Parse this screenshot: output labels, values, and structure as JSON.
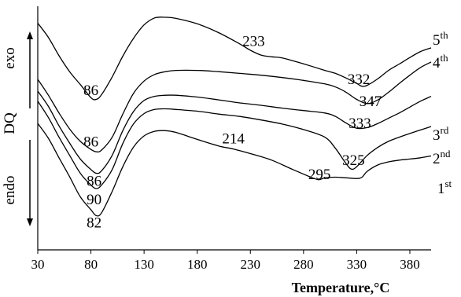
{
  "chart_data": {
    "type": "line",
    "title": "",
    "xlabel": "Temperature,°C",
    "ylabel": "DQ",
    "ylabel_top": "exo",
    "ylabel_bottom": "endo",
    "xlim": [
      30,
      400
    ],
    "ylim": [
      0,
      1
    ],
    "x_ticks": [
      30,
      80,
      130,
      180,
      230,
      280,
      330,
      380
    ],
    "grid": false,
    "series": [
      {
        "name": "5th",
        "label_base": "5",
        "label_sup": "th",
        "x": [
          30,
          40,
          50,
          60,
          70,
          80,
          85,
          90,
          100,
          110,
          120,
          130,
          140,
          150,
          160,
          180,
          200,
          220,
          230,
          240,
          250,
          260,
          280,
          300,
          310,
          320,
          330,
          335,
          340,
          350,
          360,
          370,
          380,
          390,
          400
        ],
        "y": [
          0.973,
          0.908,
          0.824,
          0.751,
          0.692,
          0.632,
          0.624,
          0.646,
          0.727,
          0.822,
          0.903,
          0.965,
          0.997,
          1.0,
          0.995,
          0.97,
          0.93,
          0.878,
          0.849,
          0.827,
          0.819,
          0.814,
          0.787,
          0.757,
          0.743,
          0.722,
          0.697,
          0.684,
          0.689,
          0.719,
          0.757,
          0.786,
          0.816,
          0.843,
          0.86
        ]
      },
      {
        "name": "4th",
        "label_base": "4",
        "label_sup": "th",
        "x": [
          30,
          40,
          50,
          60,
          70,
          80,
          85,
          90,
          100,
          110,
          120,
          130,
          140,
          150,
          160,
          180,
          200,
          220,
          240,
          260,
          280,
          300,
          310,
          320,
          330,
          340,
          350,
          360,
          370,
          380,
          390,
          400
        ],
        "y": [
          0.716,
          0.643,
          0.562,
          0.489,
          0.432,
          0.395,
          0.384,
          0.392,
          0.451,
          0.557,
          0.651,
          0.708,
          0.738,
          0.751,
          0.757,
          0.757,
          0.751,
          0.743,
          0.735,
          0.724,
          0.711,
          0.695,
          0.681,
          0.657,
          0.624,
          0.605,
          0.622,
          0.657,
          0.697,
          0.735,
          0.77,
          0.795
        ]
      },
      {
        "name": "3rd",
        "label_base": "3",
        "label_sup": "rd",
        "x": [
          30,
          40,
          50,
          60,
          70,
          80,
          85,
          90,
          100,
          110,
          120,
          130,
          140,
          150,
          160,
          180,
          200,
          220,
          240,
          260,
          280,
          300,
          310,
          320,
          330,
          340,
          350,
          360,
          370,
          380,
          390,
          400
        ],
        "y": [
          0.662,
          0.592,
          0.503,
          0.424,
          0.351,
          0.303,
          0.286,
          0.297,
          0.368,
          0.481,
          0.568,
          0.619,
          0.638,
          0.643,
          0.643,
          0.635,
          0.622,
          0.608,
          0.597,
          0.584,
          0.573,
          0.562,
          0.546,
          0.516,
          0.492,
          0.495,
          0.514,
          0.538,
          0.562,
          0.589,
          0.616,
          0.638
        ]
      },
      {
        "name": "2nd",
        "label_base": "2",
        "label_sup": "nd",
        "x": [
          30,
          40,
          50,
          60,
          70,
          80,
          85,
          90,
          100,
          110,
          120,
          130,
          140,
          150,
          160,
          180,
          200,
          220,
          240,
          260,
          280,
          300,
          310,
          320,
          325,
          330,
          340,
          350,
          360,
          370,
          380,
          390,
          400
        ],
        "y": [
          0.616,
          0.541,
          0.451,
          0.368,
          0.286,
          0.232,
          0.216,
          0.232,
          0.303,
          0.422,
          0.511,
          0.559,
          0.578,
          0.581,
          0.578,
          0.57,
          0.557,
          0.546,
          0.53,
          0.511,
          0.486,
          0.451,
          0.4,
          0.33,
          0.305,
          0.316,
          0.368,
          0.405,
          0.432,
          0.451,
          0.468,
          0.484,
          0.5
        ]
      },
      {
        "name": "1st",
        "label_base": "1",
        "label_sup": "st",
        "x": [
          30,
          40,
          50,
          60,
          70,
          80,
          85,
          90,
          100,
          110,
          120,
          130,
          140,
          150,
          160,
          180,
          200,
          214,
          230,
          250,
          270,
          290,
          295,
          300,
          310,
          320,
          330,
          335,
          340,
          350,
          360,
          370,
          380,
          390,
          400
        ],
        "y": [
          0.514,
          0.446,
          0.357,
          0.27,
          0.178,
          0.119,
          0.092,
          0.105,
          0.203,
          0.316,
          0.405,
          0.457,
          0.478,
          0.481,
          0.473,
          0.441,
          0.411,
          0.397,
          0.376,
          0.346,
          0.303,
          0.262,
          0.257,
          0.265,
          0.268,
          0.265,
          0.262,
          0.268,
          0.295,
          0.324,
          0.338,
          0.346,
          0.351,
          0.357,
          0.365
        ]
      }
    ],
    "annotations": [
      {
        "text": "86",
        "x": 80,
        "y": 0.665
      },
      {
        "text": "233",
        "x": 233,
        "y": 0.89
      },
      {
        "text": "332",
        "x": 332,
        "y": 0.715
      },
      {
        "text": "347",
        "x": 343,
        "y": 0.615
      },
      {
        "text": "86",
        "x": 80,
        "y": 0.43
      },
      {
        "text": "333",
        "x": 333,
        "y": 0.515
      },
      {
        "text": "86",
        "x": 83,
        "y": 0.25
      },
      {
        "text": "325",
        "x": 327,
        "y": 0.345
      },
      {
        "text": "214",
        "x": 214,
        "y": 0.445
      },
      {
        "text": "295",
        "x": 295,
        "y": 0.28
      },
      {
        "text": "90",
        "x": 83,
        "y": 0.165
      },
      {
        "text": "82",
        "x": 83,
        "y": 0.06
      }
    ]
  }
}
